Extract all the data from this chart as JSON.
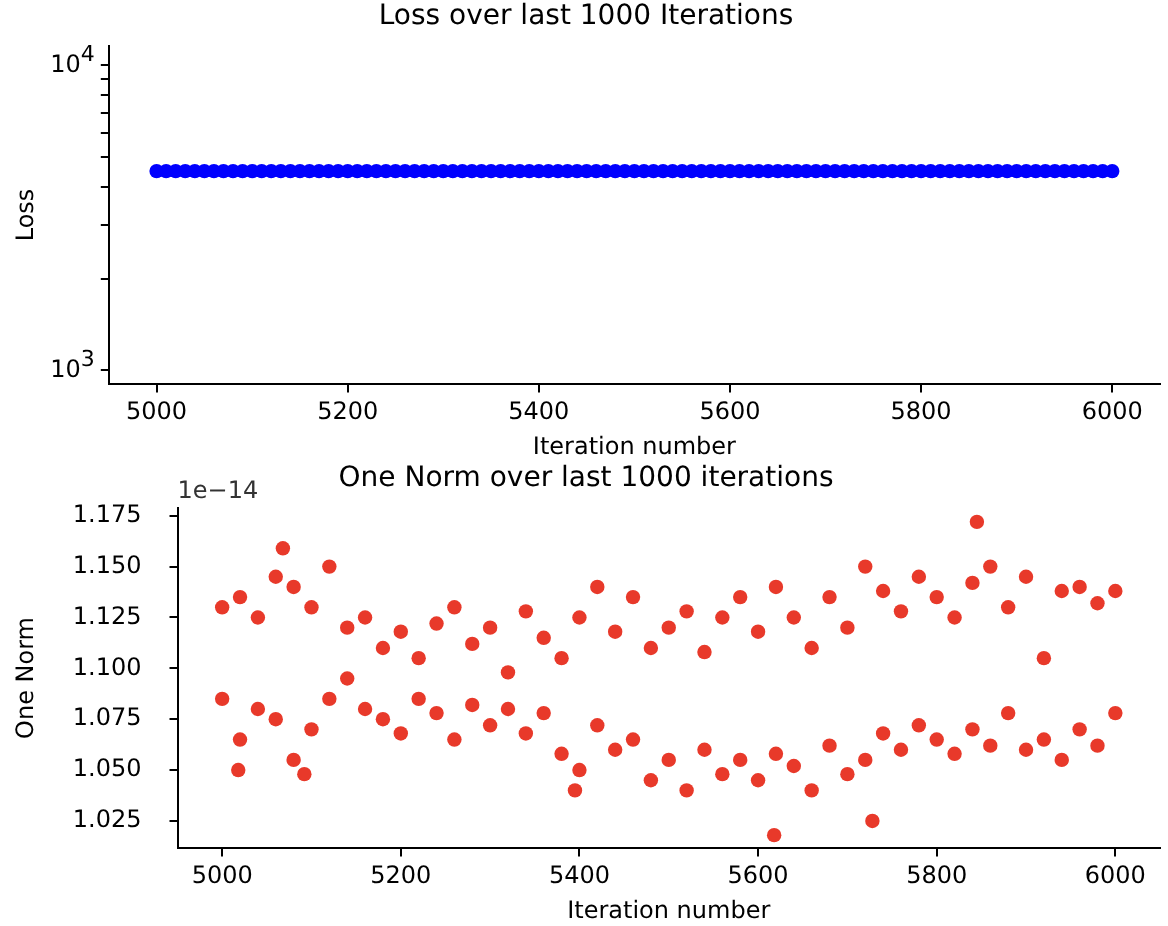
{
  "chart_data": [
    {
      "type": "scatter",
      "title": "Loss over last 1000 Iterations",
      "xlabel": "Iteration number",
      "ylabel": "Loss",
      "log": "y",
      "grid": false,
      "legend": false,
      "marker": "circle",
      "xlim": [
        4950,
        6050
      ],
      "xticks": [
        5000,
        5200,
        5400,
        5600,
        5800,
        6000
      ],
      "ylim": [
        900,
        11600
      ],
      "yticks": [
        {
          "value": 1000,
          "label": "10$^{3}$"
        },
        {
          "value": 2000,
          "label": null
        },
        {
          "value": 3000,
          "label": null
        },
        {
          "value": 4000,
          "label": null
        },
        {
          "value": 5000,
          "label": null
        },
        {
          "value": 6000,
          "label": null
        },
        {
          "value": 7000,
          "label": null
        },
        {
          "value": 8000,
          "label": null
        },
        {
          "value": 9000,
          "label": null
        },
        {
          "value": 10000,
          "label": "10$^{4}$"
        }
      ],
      "series": [
        {
          "color": "#0000ff",
          "x": [
            5000,
            5010,
            5020,
            5030,
            5040,
            5050,
            5060,
            5070,
            5080,
            5090,
            5100,
            5110,
            5120,
            5130,
            5140,
            5150,
            5160,
            5170,
            5180,
            5190,
            5200,
            5210,
            5220,
            5230,
            5240,
            5250,
            5260,
            5270,
            5280,
            5290,
            5300,
            5310,
            5320,
            5330,
            5340,
            5350,
            5360,
            5370,
            5380,
            5390,
            5400,
            5410,
            5420,
            5430,
            5440,
            5450,
            5460,
            5470,
            5480,
            5490,
            5500,
            5510,
            5520,
            5530,
            5540,
            5550,
            5560,
            5570,
            5580,
            5590,
            5600,
            5610,
            5620,
            5630,
            5640,
            5650,
            5660,
            5670,
            5680,
            5690,
            5700,
            5710,
            5720,
            5730,
            5740,
            5750,
            5760,
            5770,
            5780,
            5790,
            5800,
            5810,
            5820,
            5830,
            5840,
            5850,
            5860,
            5870,
            5880,
            5890,
            5900,
            5910,
            5920,
            5930,
            5940,
            5950,
            5960,
            5970,
            5980,
            5990,
            6000
          ],
          "values": [
            4500,
            4500,
            4500,
            4500,
            4500,
            4500,
            4500,
            4500,
            4500,
            4500,
            4500,
            4500,
            4500,
            4500,
            4500,
            4500,
            4500,
            4500,
            4500,
            4500,
            4500,
            4500,
            4500,
            4500,
            4500,
            4500,
            4500,
            4500,
            4500,
            4500,
            4500,
            4500,
            4500,
            4500,
            4500,
            4500,
            4500,
            4500,
            4500,
            4500,
            4500,
            4500,
            4500,
            4500,
            4500,
            4500,
            4500,
            4500,
            4500,
            4500,
            4500,
            4500,
            4500,
            4500,
            4500,
            4500,
            4500,
            4500,
            4500,
            4500,
            4500,
            4500,
            4500,
            4500,
            4500,
            4500,
            4500,
            4500,
            4500,
            4500,
            4500,
            4500,
            4500,
            4500,
            4500,
            4500,
            4500,
            4500,
            4500,
            4500,
            4500,
            4500,
            4500,
            4500,
            4500,
            4500,
            4500,
            4500,
            4500,
            4500,
            4500,
            4500,
            4500,
            4500,
            4500,
            4500,
            4500,
            4500,
            4500,
            4500,
            4500
          ]
        }
      ]
    },
    {
      "type": "scatter",
      "title": "One Norm over last 1000 iterations",
      "xlabel": "Iteration number",
      "ylabel": "One Norm",
      "grid": false,
      "legend": false,
      "marker": "circle",
      "annotations": [
        "1e−14"
      ],
      "xlim": [
        4950,
        6050
      ],
      "xticks": [
        5000,
        5200,
        5400,
        5600,
        5800,
        6000
      ],
      "ylim": [
        1.0115,
        1.179
      ],
      "yticks": [
        {
          "value": 1.025,
          "label": "1.025"
        },
        {
          "value": 1.05,
          "label": "1.050"
        },
        {
          "value": 1.075,
          "label": "1.075"
        },
        {
          "value": 1.1,
          "label": "1.100"
        },
        {
          "value": 1.125,
          "label": "1.125"
        },
        {
          "value": 1.15,
          "label": "1.150"
        },
        {
          "value": 1.175,
          "label": "1.175"
        }
      ],
      "series": [
        {
          "color": "#e8392a",
          "x": [
            5000,
            5020,
            5040,
            5060,
            5080,
            5100,
            5120,
            5140,
            5160,
            5180,
            5200,
            5220,
            5240,
            5260,
            5280,
            5300,
            5320,
            5340,
            5360,
            5380,
            5400,
            5420,
            5440,
            5460,
            5480,
            5500,
            5520,
            5540,
            5560,
            5580,
            5600,
            5620,
            5640,
            5660,
            5680,
            5700,
            5720,
            5740,
            5760,
            5780,
            5800,
            5820,
            5840,
            5860,
            5880,
            5900,
            5920,
            5940,
            5960,
            5980,
            6000,
            5000,
            5020,
            5040,
            5060,
            5080,
            5100,
            5120,
            5140,
            5160,
            5180,
            5200,
            5220,
            5240,
            5260,
            5280,
            5300,
            5320,
            5340,
            5360,
            5380,
            5400,
            5420,
            5440,
            5460,
            5480,
            5500,
            5520,
            5540,
            5560,
            5580,
            5600,
            5620,
            5640,
            5660,
            5680,
            5700,
            5720,
            5740,
            5760,
            5780,
            5800,
            5820,
            5840,
            5860,
            5880,
            5900,
            5920,
            5940,
            5960,
            5980,
            6000,
            5068,
            5845,
            5618,
            5395,
            5092,
            5018,
            5728
          ],
          "values": [
            1.13,
            1.135,
            1.125,
            1.145,
            1.14,
            1.13,
            1.15,
            1.12,
            1.125,
            1.11,
            1.118,
            1.105,
            1.122,
            1.13,
            1.112,
            1.12,
            1.098,
            1.128,
            1.115,
            1.105,
            1.125,
            1.14,
            1.118,
            1.135,
            1.11,
            1.12,
            1.128,
            1.108,
            1.125,
            1.135,
            1.118,
            1.14,
            1.125,
            1.11,
            1.135,
            1.12,
            1.15,
            1.138,
            1.128,
            1.145,
            1.135,
            1.125,
            1.142,
            1.15,
            1.13,
            1.145,
            1.105,
            1.138,
            1.14,
            1.132,
            1.138,
            1.085,
            1.065,
            1.08,
            1.075,
            1.055,
            1.07,
            1.085,
            1.095,
            1.08,
            1.075,
            1.068,
            1.085,
            1.078,
            1.065,
            1.082,
            1.072,
            1.08,
            1.068,
            1.078,
            1.058,
            1.05,
            1.072,
            1.06,
            1.065,
            1.045,
            1.055,
            1.04,
            1.06,
            1.048,
            1.055,
            1.045,
            1.058,
            1.052,
            1.04,
            1.062,
            1.048,
            1.055,
            1.068,
            1.06,
            1.072,
            1.065,
            1.058,
            1.07,
            1.062,
            1.078,
            1.06,
            1.065,
            1.055,
            1.07,
            1.062,
            1.078,
            1.159,
            1.172,
            1.018,
            1.04,
            1.048,
            1.05,
            1.025
          ]
        }
      ]
    }
  ]
}
